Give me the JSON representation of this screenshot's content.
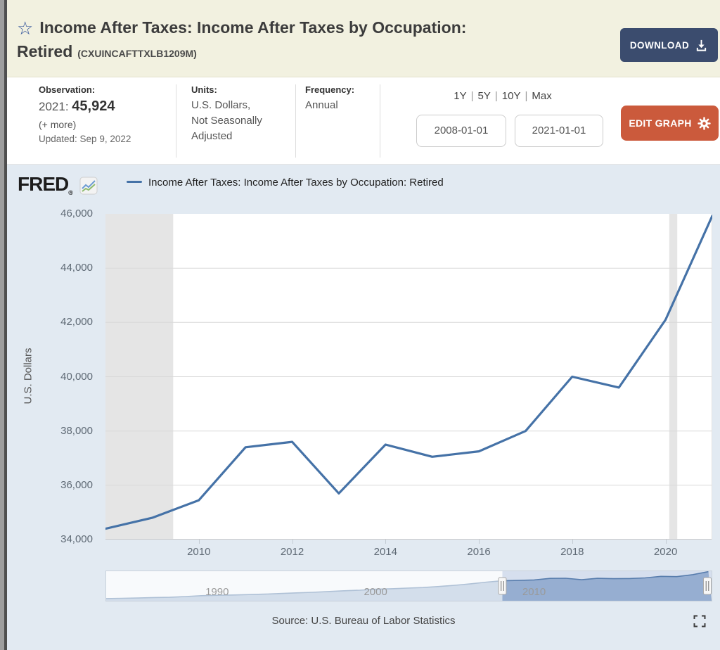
{
  "header": {
    "title_line1": "Income After Taxes: Income After Taxes by Occupation:",
    "title_line2": "Retired",
    "series_code": "(CXUINCAFTTXLB1209M)",
    "download_label": "DOWNLOAD",
    "star_icon": "white-star-outline"
  },
  "observation": {
    "label": "Observation:",
    "date": "2021:",
    "value": "45,924",
    "more": "(+ more)",
    "updated": "Updated: Sep 9, 2022"
  },
  "units": {
    "label": "Units:",
    "line1": "U.S. Dollars,",
    "line2": "Not Seasonally",
    "line3": "Adjusted"
  },
  "frequency": {
    "label": "Frequency:",
    "value": "Annual"
  },
  "range": {
    "presets": [
      "1Y",
      "5Y",
      "10Y",
      "Max"
    ],
    "start": "2008-01-01",
    "end": "2021-01-01",
    "edit_label": "EDIT GRAPH"
  },
  "logo": {
    "text": "FRED",
    "reg": "®"
  },
  "legend": {
    "label": "Income After Taxes: Income After Taxes by Occupation: Retired"
  },
  "source": {
    "text": "Source: U.S. Bureau of Labor Statistics"
  },
  "chart_data": [
    {
      "type": "line",
      "title": "Income After Taxes: Income After Taxes by Occupation: Retired",
      "ylabel": "U.S. Dollars",
      "x": [
        2008,
        2009,
        2010,
        2011,
        2012,
        2013,
        2014,
        2015,
        2016,
        2017,
        2018,
        2019,
        2020,
        2021
      ],
      "values": [
        34400,
        34800,
        35450,
        37400,
        37600,
        35700,
        37500,
        37050,
        37250,
        38000,
        40000,
        39600,
        42100,
        45924
      ],
      "xlim": [
        2008,
        2021
      ],
      "ylim": [
        34000,
        46000
      ],
      "yticks": [
        34000,
        36000,
        38000,
        40000,
        42000,
        44000,
        46000
      ],
      "ytick_labels": [
        "34,000",
        "36,000",
        "38,000",
        "40,000",
        "42,000",
        "44,000",
        "46,000"
      ],
      "xticks": [
        2010,
        2012,
        2014,
        2016,
        2018,
        2020
      ],
      "xtick_labels": [
        "2010",
        "2012",
        "2014",
        "2016",
        "2018",
        "2020"
      ],
      "grid": "horizontal",
      "recessions": [
        [
          2008.0,
          2009.45
        ],
        [
          2020.08,
          2020.25
        ]
      ]
    },
    {
      "type": "area",
      "role": "navigator",
      "x": [
        1983,
        1984,
        1985,
        1986,
        1987,
        1988,
        1989,
        1990,
        1991,
        1992,
        1993,
        1994,
        1995,
        1996,
        1997,
        1998,
        1999,
        2000,
        2001,
        2002,
        2003,
        2004,
        2005,
        2006,
        2007,
        2008,
        2009,
        2010,
        2011,
        2012,
        2013,
        2014,
        2015,
        2016,
        2017,
        2018,
        2019,
        2020,
        2021
      ],
      "values": [
        11800,
        12100,
        12500,
        13100,
        13400,
        14400,
        15400,
        16000,
        16300,
        16900,
        17400,
        18200,
        19000,
        19700,
        20700,
        21700,
        22400,
        23600,
        24300,
        25100,
        25800,
        27100,
        28600,
        30500,
        32700,
        34400,
        34800,
        35450,
        37400,
        37600,
        35700,
        37500,
        37050,
        37250,
        38000,
        40000,
        39600,
        42100,
        45924
      ],
      "xlim": [
        1983,
        2021.2
      ],
      "ylim": [
        9000,
        46500
      ],
      "xticks": [
        1990,
        2000,
        2010
      ],
      "xtick_labels": [
        "1990",
        "2000",
        "2010"
      ],
      "selected_range": [
        2008,
        2021.2
      ]
    }
  ],
  "colors": {
    "header_bg": "#f2f1e0",
    "accent_blue": "#3c5c9e",
    "download_btn": "#3b4c6e",
    "edit_btn": "#cb5a3c",
    "section_bg": "#e2eaf2",
    "line": "#4572a7",
    "recession": "#e5e5e5",
    "grid": "#d9d9d9",
    "axis_line": "#c8c8c8",
    "nav_area_fill": "#8fa9cd",
    "nav_line": "#4f77a5"
  }
}
